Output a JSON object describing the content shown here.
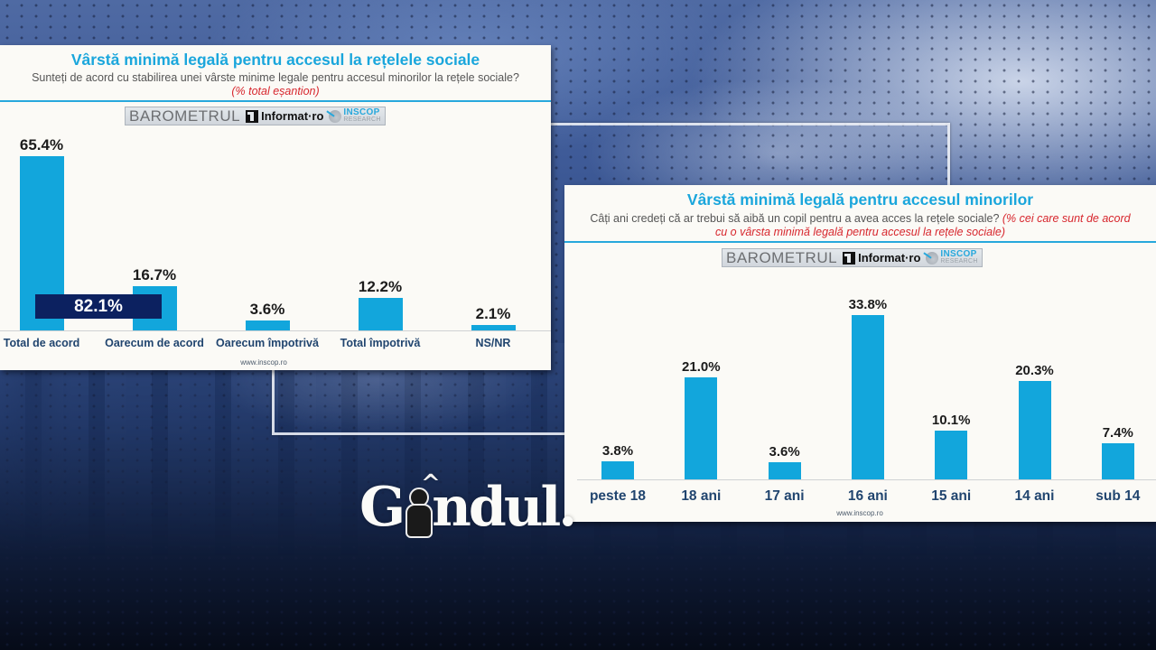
{
  "background": {
    "brand_logo": "Gândul."
  },
  "left_card": {
    "title": "Vârstă minimă legală pentru accesul la rețelele sociale",
    "subtitle": "Sunteți de acord cu stabilirea unei vârste minime legale pentru accesul minorilor la rețele sociale?",
    "subtitle_note": "(% total eșantion)",
    "logo_barometrul": "BAROMETRUL",
    "logo_informat": "Informat·ro",
    "logo_inscop": "INSCOP",
    "logo_research": "RESEARCH",
    "website": "www.inscop.ro",
    "total_agree_label": "82.1%",
    "accent_color": "#12a6dc",
    "highlight_color": "#0c2160"
  },
  "right_card": {
    "title": "Vârstă minimă legală pentru accesul minorilor",
    "subtitle": "Câți ani credeți că ar trebui să aibă un copil pentru a avea acces la rețele sociale?",
    "subtitle_note_1": "(% cei care sunt de acord",
    "subtitle_note_2": "cu o vârsta minimă legală pentru accesul la rețele sociale)",
    "logo_barometrul": "BAROMETRUL",
    "logo_informat": "Informat·ro",
    "logo_inscop": "INSCOP",
    "logo_research": "RESEARCH",
    "website": "www.inscop.ro"
  },
  "chart_data": [
    {
      "type": "bar",
      "title": "Vârstă minimă legală pentru accesul la rețelele sociale",
      "subtitle": "Sunteți de acord cu stabilirea unei vârste minime legale pentru accesul minorilor la rețele sociale? (% total eșantion)",
      "categories": [
        "Total de acord",
        "Oarecum de acord",
        "Oarecum împotrivă",
        "Total împotrivă",
        "NS/NR"
      ],
      "values": [
        65.4,
        16.7,
        3.6,
        12.2,
        2.1
      ],
      "labels": [
        "65.4%",
        "16.7%",
        "3.6%",
        "12.2%",
        "2.1%"
      ],
      "annotations": [
        {
          "text": "82.1%",
          "meaning": "Total de acord + Oarecum de acord"
        }
      ],
      "xlabel": "",
      "ylabel": "%",
      "ylim": [
        0,
        70
      ],
      "grid": false,
      "legend": "none",
      "source": "www.inscop.ro"
    },
    {
      "type": "bar",
      "title": "Vârstă minimă legală pentru accesul minorilor",
      "subtitle": "Câți ani credeți că ar trebui să aibă un copil pentru a avea acces la rețele sociale? (% cei care sunt de acord cu o vârsta minimă legală pentru accesul la rețele sociale)",
      "categories": [
        "peste 18",
        "18 ani",
        "17 ani",
        "16 ani",
        "15 ani",
        "14 ani",
        "sub 14"
      ],
      "values": [
        3.8,
        21.0,
        3.6,
        33.8,
        10.1,
        20.3,
        7.4
      ],
      "labels": [
        "3.8%",
        "21.0%",
        "3.6%",
        "33.8%",
        "10.1%",
        "20.3%",
        "7.4%"
      ],
      "xlabel": "",
      "ylabel": "%",
      "ylim": [
        0,
        36
      ],
      "grid": false,
      "legend": "none",
      "source": "www.inscop.ro"
    }
  ]
}
